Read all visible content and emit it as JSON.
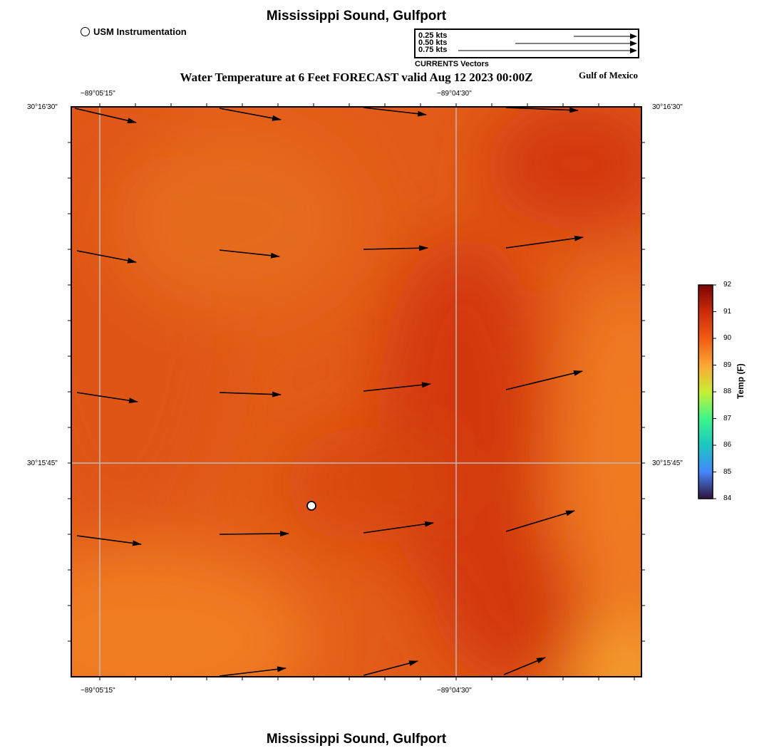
{
  "header": {
    "title": "Mississippi Sound, Gulfport",
    "subtitle": "Water Temperature at 6 Feet FORECAST valid Aug 12 2023 00:00Z",
    "region": "Gulf of Mexico"
  },
  "footer": {
    "title": "Mississippi Sound, Gulfport"
  },
  "instrument_legend": {
    "label": "USM Instrumentation"
  },
  "vector_legend": {
    "caption": "CURRENTS Vectors",
    "entries": [
      {
        "label": "0.25 kts",
        "speed": 0.25
      },
      {
        "label": "0.50 kts",
        "speed": 0.5
      },
      {
        "label": "0.75 kts",
        "speed": 0.75
      }
    ]
  },
  "axes": {
    "lon_ticks": [
      "−89°05'15\"",
      "−89°04'30\""
    ],
    "lat_ticks": [
      "30°16'30\"",
      "30°15'45\""
    ]
  },
  "colorbar": {
    "title": "Temp (F)",
    "min": 84,
    "max": 92,
    "ticks": [
      "92",
      "91",
      "90",
      "89",
      "88",
      "87",
      "86",
      "85",
      "84"
    ]
  },
  "colors": {
    "field_base": "#e25c18",
    "field_dark": "#d3390a",
    "field_light": "#f38226",
    "grid": "#bbbbbb"
  }
}
